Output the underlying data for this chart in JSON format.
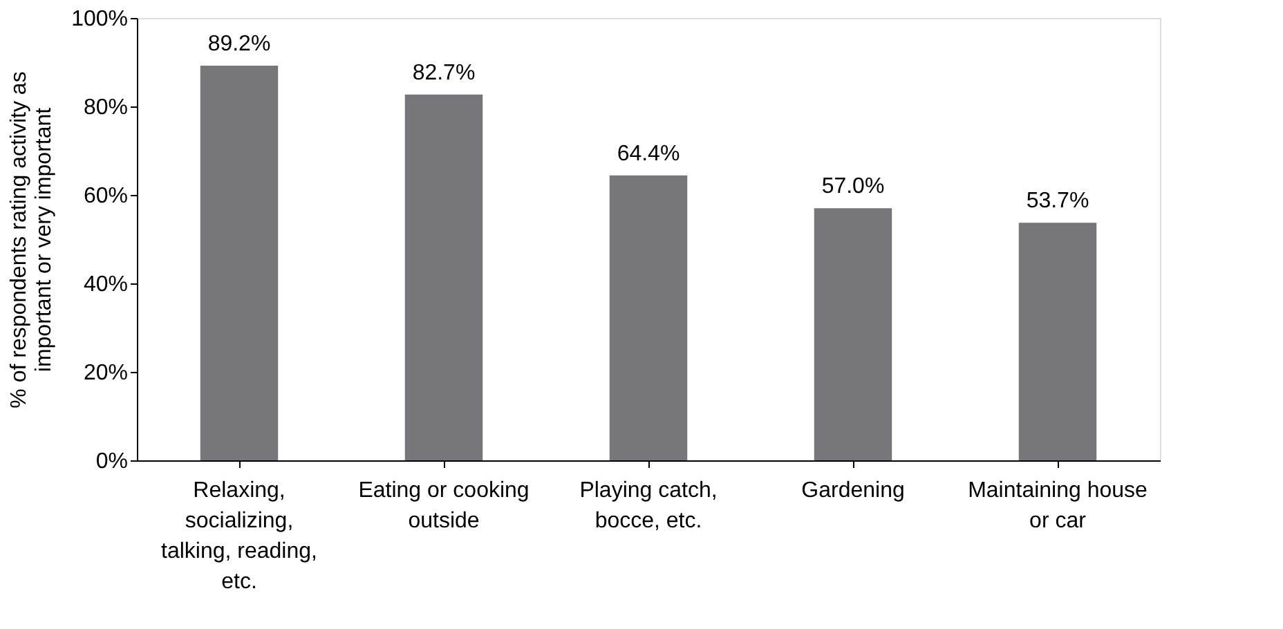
{
  "chart_data": {
    "type": "bar",
    "ylabel": "% of respondents rating activity as important or very important",
    "categories": [
      "Relaxing, socializing, talking, reading, etc.",
      "Eating or cooking outside",
      "Playing catch, bocce, etc.",
      "Gardening",
      "Maintaining house or car"
    ],
    "values": [
      89.2,
      82.7,
      64.4,
      57.0,
      53.7
    ],
    "value_labels": [
      "89.2%",
      "82.7%",
      "64.4%",
      "57.0%",
      "53.7%"
    ],
    "color": "#77777b",
    "ylim": [
      0,
      100
    ],
    "yticks": [
      {
        "value": 0,
        "label": "0%"
      },
      {
        "value": 20,
        "label": "20%"
      },
      {
        "value": 40,
        "label": "40%"
      },
      {
        "value": 60,
        "label": "60%"
      },
      {
        "value": 80,
        "label": "80%"
      },
      {
        "value": 100,
        "label": "100%"
      }
    ],
    "grid": false
  }
}
